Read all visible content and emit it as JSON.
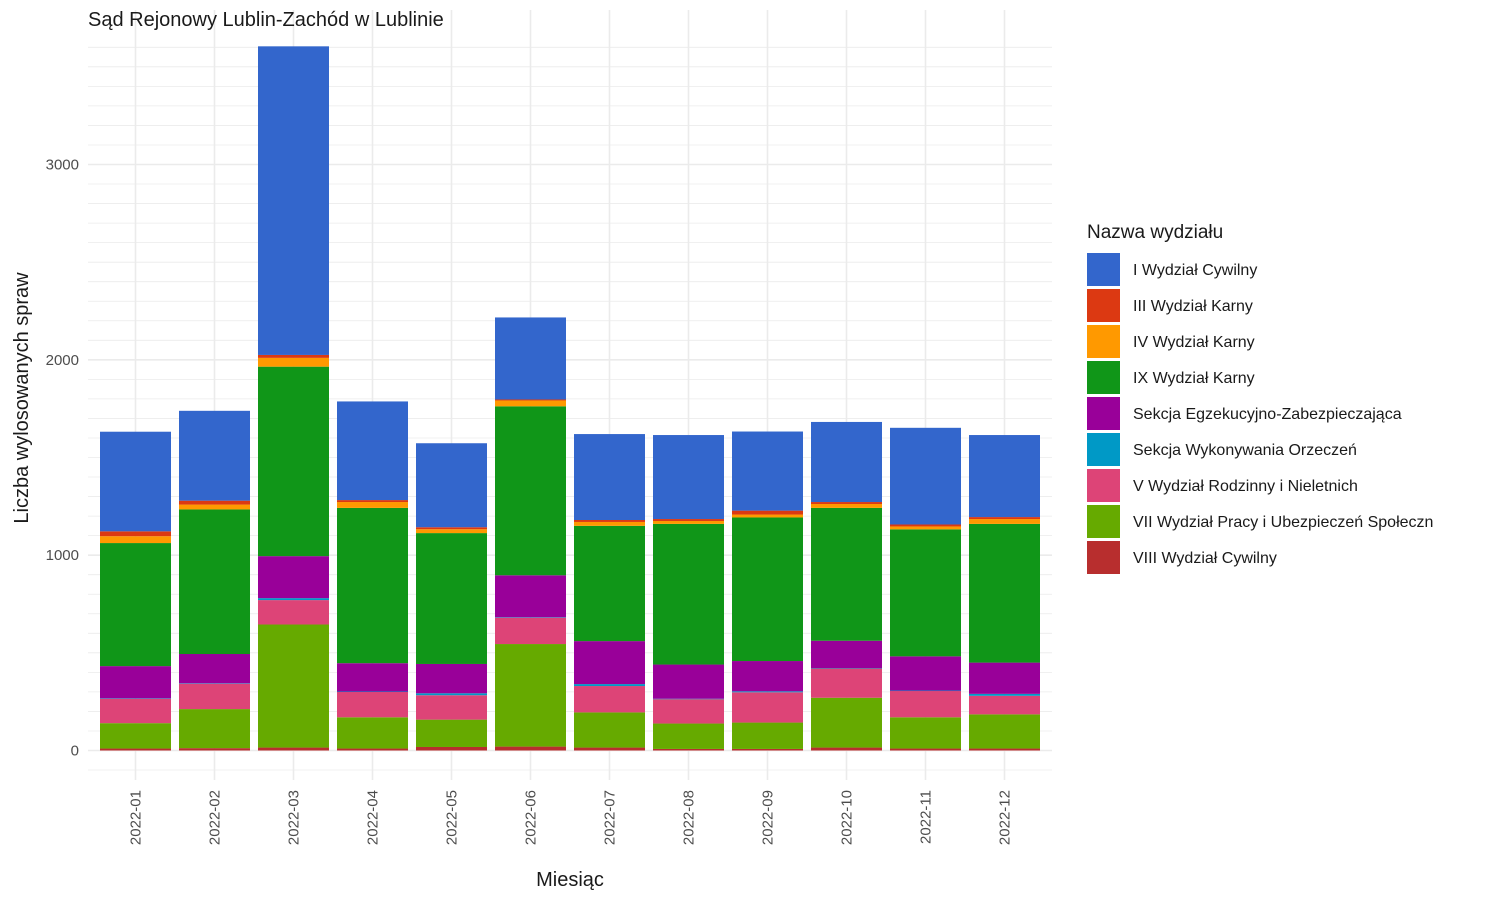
{
  "chart_data": {
    "type": "bar",
    "stacked": true,
    "title": "Sąd Rejonowy Lublin-Zachód w Lublinie",
    "xlabel": "Miesiąc",
    "ylabel": "Liczba wylosowanych spraw",
    "ylim": [
      -140,
      3650
    ],
    "yticks": [
      0,
      1000,
      2000,
      3000
    ],
    "y_minor_step": 100,
    "grid": true,
    "legend_position": "right",
    "legend_title": "Nazwa wydziału",
    "categories": [
      "2022-01",
      "2022-02",
      "2022-03",
      "2022-04",
      "2022-05",
      "2022-06",
      "2022-07",
      "2022-08",
      "2022-09",
      "2022-10",
      "2022-11",
      "2022-12"
    ],
    "series": [
      {
        "name": "VIII Wydział Cywilny",
        "color": "#b82e2e",
        "values": [
          10,
          12,
          15,
          10,
          18,
          20,
          15,
          8,
          8,
          15,
          10,
          10
        ]
      },
      {
        "name": "VII Wydział Pracy i Ubezpieczeń Społeczn",
        "color": "#66aa00",
        "values": [
          130,
          200,
          630,
          160,
          140,
          525,
          180,
          130,
          135,
          255,
          160,
          175
        ]
      },
      {
        "name": "V Wydział Rodzinny i Nieletnich",
        "color": "#dd4477",
        "values": [
          125,
          130,
          125,
          130,
          125,
          135,
          135,
          125,
          155,
          150,
          135,
          95
        ]
      },
      {
        "name": "Sekcja Wykonywania Orzeczeń",
        "color": "#0099c6",
        "values": [
          2,
          2,
          10,
          2,
          10,
          2,
          10,
          2,
          5,
          2,
          2,
          10
        ]
      },
      {
        "name": "Sekcja Egzekucyjno-Zabezpieczająca",
        "color": "#990099",
        "values": [
          165,
          150,
          215,
          145,
          150,
          215,
          220,
          175,
          155,
          140,
          175,
          160
        ]
      },
      {
        "name": "IX Wydział Karny",
        "color": "#109618",
        "values": [
          630,
          740,
          970,
          795,
          670,
          865,
          590,
          720,
          735,
          680,
          650,
          710
        ]
      },
      {
        "name": "IV Wydział Karny",
        "color": "#ff9900",
        "values": [
          35,
          25,
          45,
          30,
          20,
          30,
          20,
          15,
          15,
          20,
          15,
          25
        ]
      },
      {
        "name": "III Wydział Karny",
        "color": "#dc3912",
        "values": [
          25,
          20,
          15,
          10,
          10,
          5,
          10,
          10,
          20,
          10,
          10,
          10
        ]
      },
      {
        "name": "I Wydział Cywilny",
        "color": "#3366cc",
        "values": [
          510,
          460,
          1580,
          505,
          430,
          420,
          440,
          430,
          405,
          410,
          495,
          420
        ]
      }
    ]
  },
  "legend_order": [
    "I Wydział Cywilny",
    "III Wydział Karny",
    "IV Wydział Karny",
    "IX Wydział Karny",
    "Sekcja Egzekucyjno-Zabezpieczająca",
    "Sekcja Wykonywania Orzeczeń",
    "V Wydział Rodzinny i Nieletnich",
    "VII Wydział Pracy i Ubezpieczeń Społeczn",
    "VIII Wydział Cywilny"
  ]
}
